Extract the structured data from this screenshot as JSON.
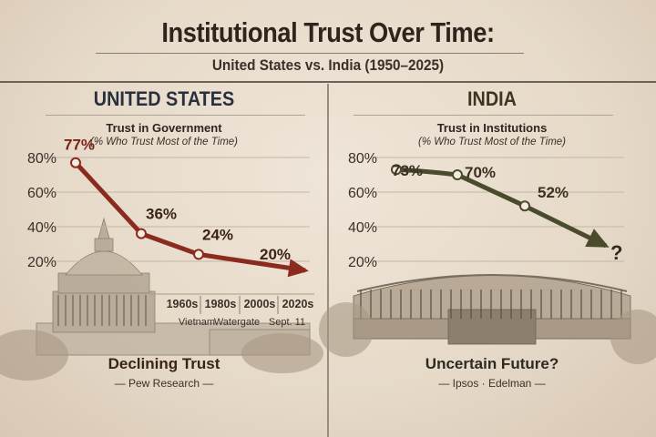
{
  "title": "Institutional Trust Over Time:",
  "subtitle": "United States vs. India (1950–2025)",
  "colors": {
    "us_line": "#8b2a1e",
    "india_line": "#4a4a2c",
    "us_heading": "#2a2f3d",
    "india_heading": "#3d3520",
    "background": "#e8dccb"
  },
  "chart_data": [
    {
      "type": "line",
      "panel_heading": "UNITED STATES",
      "title": "Trust in Government",
      "subtitle": "(% Who Trust Most of the Time)",
      "yticks": [
        "80%",
        "60%",
        "40%",
        "20%"
      ],
      "ylim": [
        0,
        80
      ],
      "grid": true,
      "values": [
        77,
        36,
        24,
        20
      ],
      "data_labels": [
        "77%",
        "36%",
        "24%",
        "20%"
      ],
      "categories": [
        "1960s",
        "1980s",
        "2000s",
        "2020s"
      ],
      "annotations": [
        "Vietnam",
        "Watergate",
        "Sept. 11"
      ],
      "trend": "down-arrow",
      "footer": "Declining Trust",
      "source": "— Pew Research —"
    },
    {
      "type": "line",
      "panel_heading": "INDIA",
      "title": "Trust in Institutions",
      "subtitle": "(% Who Trust Most of the Time)",
      "yticks": [
        "80%",
        "60%",
        "40%",
        "20%"
      ],
      "ylim": [
        0,
        80
      ],
      "grid": true,
      "values": [
        73,
        70,
        52
      ],
      "data_labels": [
        "73%",
        "70%",
        "52%"
      ],
      "end_marker": "?",
      "trend": "down-arrow",
      "footer": "Uncertain Future?",
      "source": "— Ipsos · Edelman —"
    }
  ]
}
